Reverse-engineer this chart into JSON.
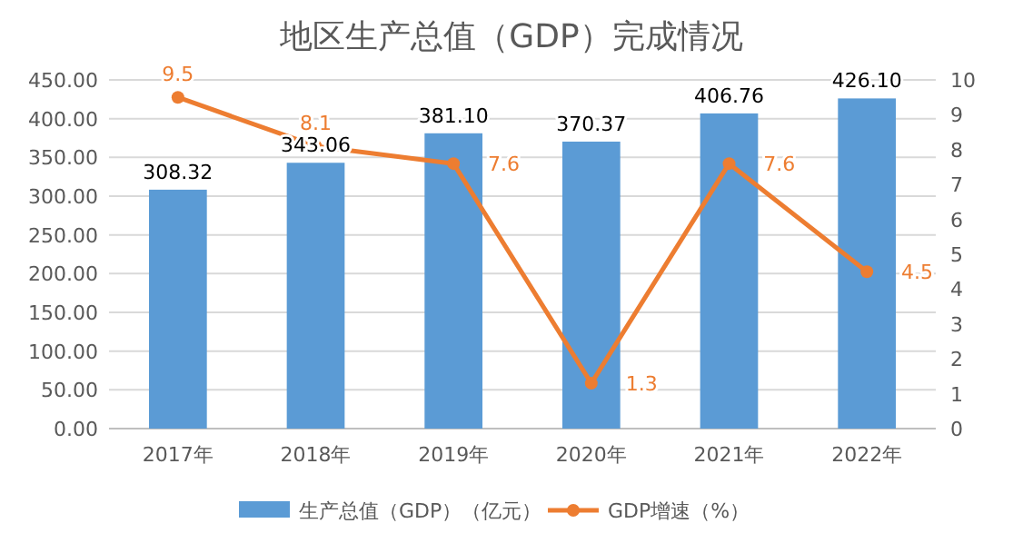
{
  "chart_data": {
    "type": "bar",
    "title": "地区生产总值（GDP）完成情况",
    "categories": [
      "2017年",
      "2018年",
      "2019年",
      "2020年",
      "2021年",
      "2022年"
    ],
    "series": [
      {
        "type": "bar",
        "name": "生产总值（GDP）（亿元）",
        "color": "#5b9bd5",
        "values": [
          308.32,
          343.06,
          381.1,
          370.37,
          406.76,
          426.1
        ],
        "value_labels": [
          "308.32",
          "343.06",
          "381.10",
          "370.37",
          "406.76",
          "426.10"
        ]
      },
      {
        "type": "line",
        "name": "GDP增速（%）",
        "color": "#ed7d31",
        "axis": "y2",
        "marker": "circle",
        "values": [
          9.5,
          8.1,
          7.6,
          1.3,
          7.6,
          4.5
        ],
        "value_labels": [
          "9.5",
          "8.1",
          "7.6",
          "1.3",
          "7.6",
          "4.5"
        ]
      }
    ],
    "ylim": [
      0,
      450
    ],
    "yticks": [
      {
        "value": 0,
        "label": "0.00"
      },
      {
        "value": 50,
        "label": "50.00"
      },
      {
        "value": 100,
        "label": "100.00"
      },
      {
        "value": 150,
        "label": "150.00"
      },
      {
        "value": 200,
        "label": "200.00"
      },
      {
        "value": 250,
        "label": "250.00"
      },
      {
        "value": 300,
        "label": "300.00"
      },
      {
        "value": 350,
        "label": "350.00"
      },
      {
        "value": 400,
        "label": "400.00"
      },
      {
        "value": 450,
        "label": "450.00"
      }
    ],
    "y2lim": [
      0,
      10
    ],
    "y2ticks": [
      0,
      1,
      2,
      3,
      4,
      5,
      6,
      7,
      8,
      9,
      10
    ],
    "grid": "y",
    "legend": "bottom"
  }
}
